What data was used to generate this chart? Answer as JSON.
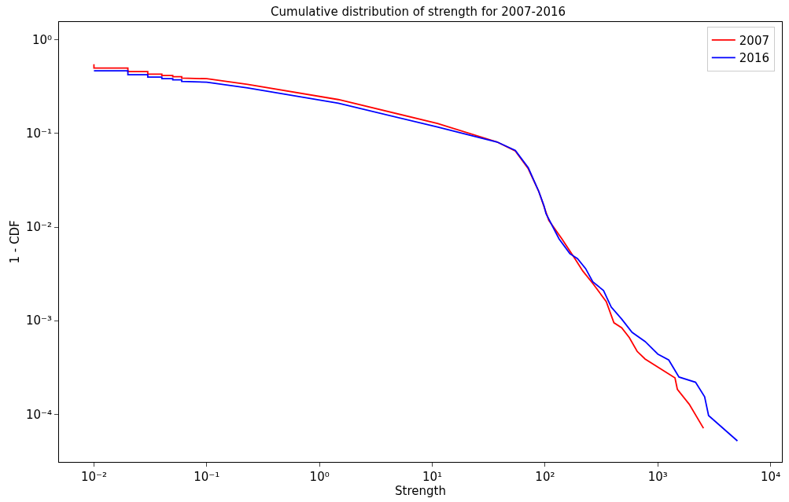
{
  "chart_data": {
    "type": "line",
    "title": "Cumulative distribution of strength for 2007-2016",
    "xlabel": "Strength",
    "ylabel": "1 - CDF",
    "log": "xy",
    "grid": false,
    "legend": "top right",
    "line_style": "solid",
    "xlim": [
      0.0049,
      12600
    ],
    "ylim": [
      3.1e-05,
      1.55
    ],
    "xticks": [
      {
        "value": 0.01,
        "label": "10⁻²"
      },
      {
        "value": 0.1,
        "label": "10⁻¹"
      },
      {
        "value": 1,
        "label": "10⁰"
      },
      {
        "value": 10,
        "label": "10¹"
      },
      {
        "value": 100,
        "label": "10²"
      },
      {
        "value": 1000,
        "label": "10³"
      },
      {
        "value": 10000,
        "label": "10⁴"
      }
    ],
    "yticks": [
      {
        "value": 1,
        "label": "10⁰"
      },
      {
        "value": 0.1,
        "label": "10⁻¹"
      },
      {
        "value": 0.01,
        "label": "10⁻²"
      },
      {
        "value": 0.001,
        "label": "10⁻³"
      },
      {
        "value": 0.0001,
        "label": "10⁻⁴"
      }
    ],
    "series": [
      {
        "name": "2007",
        "color": "#ff0000",
        "x": [
          0.01,
          0.01,
          0.02,
          0.02,
          0.03,
          0.03,
          0.04,
          0.04,
          0.05,
          0.05,
          0.06,
          0.06,
          0.1,
          0.23,
          1.47,
          11.1,
          37.6,
          54.5,
          71,
          88,
          98,
          108,
          141,
          184,
          216,
          265,
          349,
          408,
          478,
          559,
          656,
          771,
          1420,
          1490,
          1900,
          2540
        ],
        "values": [
          0.55,
          0.5,
          0.5,
          0.457,
          0.457,
          0.43,
          0.43,
          0.416,
          0.416,
          0.404,
          0.404,
          0.39,
          0.384,
          0.335,
          0.23,
          0.128,
          0.081,
          0.065,
          0.042,
          0.024,
          0.0165,
          0.0118,
          0.0075,
          0.0046,
          0.0034,
          0.0025,
          0.0016,
          0.00095,
          0.00084,
          0.00066,
          0.00047,
          0.00039,
          0.000245,
          0.000185,
          0.000128,
          7.1e-05
        ]
      },
      {
        "name": "2016",
        "color": "#0000ff",
        "x": [
          0.01,
          0.02,
          0.02,
          0.03,
          0.03,
          0.04,
          0.04,
          0.05,
          0.05,
          0.06,
          0.06,
          0.1,
          0.23,
          1.47,
          11.1,
          37.6,
          54.5,
          71,
          88,
          98,
          102,
          133,
          166,
          194,
          229,
          265,
          330,
          386,
          478,
          591,
          771,
          1000,
          1250,
          1540,
          2160,
          2600,
          2820,
          5080
        ],
        "values": [
          0.466,
          0.466,
          0.424,
          0.424,
          0.4,
          0.4,
          0.384,
          0.384,
          0.373,
          0.373,
          0.36,
          0.352,
          0.306,
          0.21,
          0.117,
          0.081,
          0.066,
          0.043,
          0.024,
          0.0168,
          0.0139,
          0.0075,
          0.0052,
          0.0046,
          0.0036,
          0.0026,
          0.0021,
          0.0014,
          0.00104,
          0.00075,
          0.0006,
          0.00044,
          0.00038,
          0.00025,
          0.00022,
          0.000154,
          9.7e-05,
          5.2e-05
        ]
      }
    ]
  }
}
